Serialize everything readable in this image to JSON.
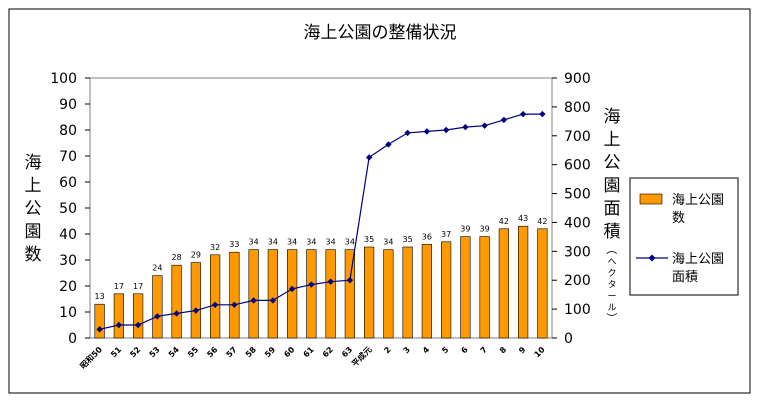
{
  "chart_data": {
    "type": "bar",
    "title": "海上公園の整備状況",
    "categories": [
      "昭和50",
      "51",
      "52",
      "53",
      "54",
      "55",
      "56",
      "57",
      "58",
      "59",
      "60",
      "61",
      "62",
      "63",
      "平成元",
      "2",
      "3",
      "4",
      "5",
      "6",
      "7",
      "8",
      "9",
      "10"
    ],
    "series": [
      {
        "name": "海上公園数",
        "kind": "bar",
        "axis": "left",
        "color": "#FF9900",
        "values": [
          13,
          17,
          17,
          24,
          28,
          29,
          32,
          33,
          34,
          34,
          34,
          34,
          34,
          34,
          35,
          34,
          35,
          36,
          37,
          39,
          39,
          42,
          43,
          42
        ]
      },
      {
        "name": "海上公園面積",
        "kind": "line",
        "axis": "right",
        "color": "#000080",
        "values": [
          30,
          45,
          45,
          75,
          85,
          95,
          115,
          115,
          130,
          130,
          170,
          185,
          195,
          200,
          625,
          670,
          710,
          715,
          720,
          730,
          735,
          755,
          775,
          775
        ]
      }
    ],
    "y_left": {
      "label": "海上公園数",
      "range": [
        0,
        100
      ],
      "ticks": [
        0,
        10,
        20,
        30,
        40,
        50,
        60,
        70,
        80,
        90,
        100
      ]
    },
    "y_right": {
      "label_main": "海上公園面積",
      "label_unit": "（ヘクタール）",
      "range": [
        0,
        900
      ],
      "ticks": [
        0,
        100,
        200,
        300,
        400,
        500,
        600,
        700,
        800,
        900
      ]
    },
    "legend": {
      "position": "right",
      "items": [
        {
          "label": "海上公園\n数",
          "symbol": "bar"
        },
        {
          "label": "海上公園\n面積",
          "symbol": "line"
        }
      ]
    },
    "grid": false
  }
}
